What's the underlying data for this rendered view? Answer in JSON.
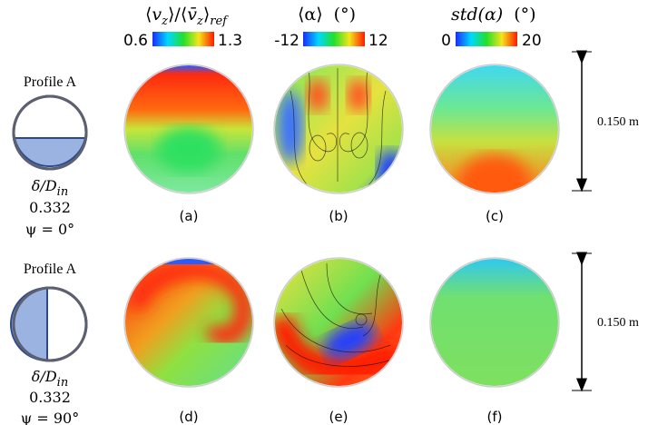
{
  "columns": [
    {
      "title": [
        "⟨",
        "v",
        "z",
        "⟩/⟨",
        "v̄",
        "z",
        "⟩",
        "ref"
      ],
      "min": "0.6",
      "max": "1.3"
    },
    {
      "title": [
        "⟨α⟩",
        "(°)"
      ],
      "min": "-12",
      "max": "12"
    },
    {
      "title": [
        "std(α)",
        "(°)"
      ],
      "min": "0",
      "max": "20"
    }
  ],
  "rows": [
    {
      "profile": "Profile A",
      "ratio": [
        "δ/D",
        "in"
      ],
      "value": "0.332",
      "angle": "ψ = 0°",
      "panels": [
        "(a)",
        "(b)",
        "(c)"
      ],
      "scale": "0.150 m"
    },
    {
      "profile": "Profile A",
      "ratio": [
        "δ/D",
        "in"
      ],
      "value": "0.332",
      "angle": "ψ = 90°",
      "panels": [
        "(d)",
        "(e)",
        "(f)"
      ],
      "scale": "0.150 m"
    }
  ]
}
